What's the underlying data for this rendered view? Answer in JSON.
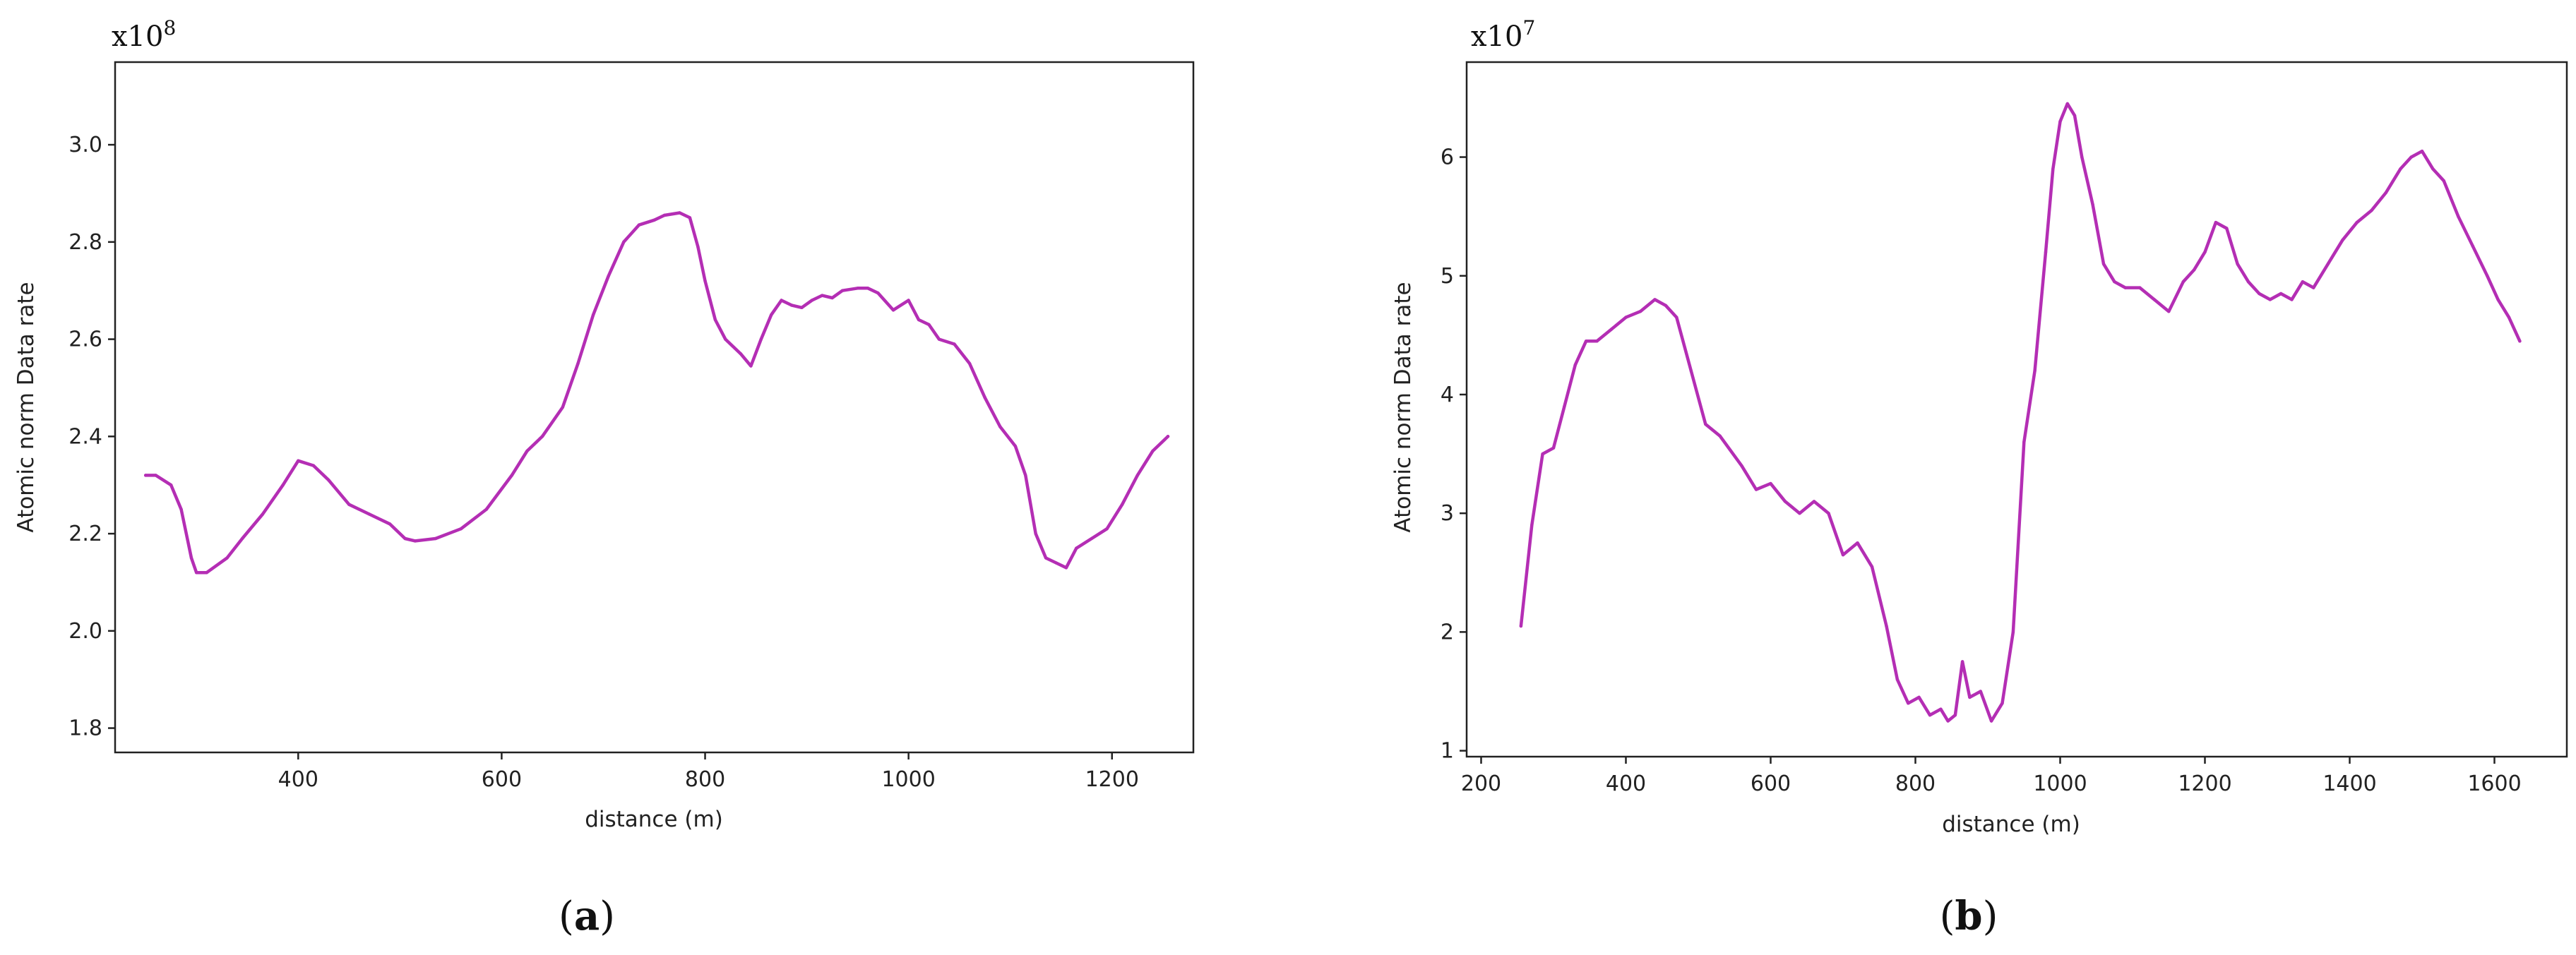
{
  "chart_data": [
    {
      "type": "line",
      "caption_open": "(",
      "caption_letter": "a",
      "caption_close": ")",
      "multiplier_base": "x10",
      "multiplier_exp": "8",
      "xlabel": "distance (m)",
      "ylabel": "Atomic norm Data rate",
      "xlim": [
        220,
        1280
      ],
      "ylim": [
        1.75,
        3.17
      ],
      "x_ticks": [
        400,
        600,
        800,
        1000,
        1200
      ],
      "y_ticks": [
        1.8,
        2.0,
        2.2,
        2.4,
        2.6,
        2.8,
        3.0
      ],
      "x_tick_labels": [
        "400",
        "600",
        "800",
        "1000",
        "1200"
      ],
      "y_tick_labels": [
        "1.8",
        "2.0",
        "2.2",
        "2.4",
        "2.6",
        "2.8",
        "3.0"
      ],
      "line_color": "#b42eb4",
      "grid": false,
      "series": [
        {
          "x": [
            250,
            260,
            275,
            285,
            295,
            300,
            310,
            330,
            345,
            365,
            385,
            400,
            415,
            430,
            450,
            470,
            490,
            505,
            515,
            535,
            560,
            585,
            610,
            625,
            640,
            660,
            675,
            690,
            705,
            720,
            735,
            750,
            760,
            775,
            785,
            793,
            800,
            810,
            820,
            835,
            845,
            855,
            865,
            875,
            885,
            895,
            905,
            915,
            925,
            935,
            950,
            960,
            970,
            985,
            1000,
            1010,
            1020,
            1030,
            1045,
            1060,
            1075,
            1090,
            1105,
            1115,
            1125,
            1135,
            1145,
            1155,
            1165,
            1180,
            1195,
            1210,
            1225,
            1240,
            1255
          ],
          "y": [
            2.32,
            2.32,
            2.3,
            2.25,
            2.15,
            2.12,
            2.12,
            2.15,
            2.19,
            2.24,
            2.3,
            2.35,
            2.34,
            2.31,
            2.26,
            2.24,
            2.22,
            2.19,
            2.185,
            2.19,
            2.21,
            2.25,
            2.32,
            2.37,
            2.4,
            2.46,
            2.55,
            2.65,
            2.73,
            2.8,
            2.835,
            2.845,
            2.855,
            2.86,
            2.85,
            2.79,
            2.72,
            2.64,
            2.6,
            2.57,
            2.545,
            2.6,
            2.65,
            2.68,
            2.67,
            2.665,
            2.68,
            2.69,
            2.685,
            2.7,
            2.705,
            2.705,
            2.695,
            2.66,
            2.68,
            2.64,
            2.63,
            2.6,
            2.59,
            2.55,
            2.48,
            2.42,
            2.38,
            2.32,
            2.2,
            2.15,
            2.14,
            2.13,
            2.17,
            2.19,
            2.21,
            2.26,
            2.32,
            2.37,
            2.4
          ]
        }
      ]
    },
    {
      "type": "line",
      "caption_open": "(",
      "caption_letter": "b",
      "caption_close": ")",
      "multiplier_base": "x10",
      "multiplier_exp": "7",
      "xlabel": "distance (m)",
      "ylabel": "Atomic norm Data rate",
      "xlim": [
        180,
        1700
      ],
      "ylim": [
        0.95,
        6.8
      ],
      "x_ticks": [
        200,
        400,
        600,
        800,
        1000,
        1200,
        1400,
        1600
      ],
      "y_ticks": [
        1,
        2,
        3,
        4,
        5,
        6
      ],
      "x_tick_labels": [
        "200",
        "400",
        "600",
        "800",
        "1000",
        "1200",
        "1400",
        "1600"
      ],
      "y_tick_labels": [
        "1",
        "2",
        "3",
        "4",
        "5",
        "6"
      ],
      "line_color": "#b42eb4",
      "grid": false,
      "series": [
        {
          "x": [
            255,
            270,
            285,
            300,
            315,
            330,
            345,
            360,
            380,
            400,
            420,
            440,
            455,
            470,
            490,
            510,
            530,
            560,
            580,
            600,
            620,
            640,
            660,
            680,
            700,
            720,
            740,
            760,
            775,
            790,
            805,
            820,
            835,
            845,
            855,
            865,
            875,
            890,
            905,
            920,
            935,
            950,
            965,
            980,
            990,
            1000,
            1010,
            1020,
            1030,
            1045,
            1060,
            1075,
            1090,
            1110,
            1130,
            1150,
            1170,
            1185,
            1200,
            1215,
            1230,
            1245,
            1260,
            1275,
            1290,
            1305,
            1320,
            1335,
            1350,
            1370,
            1390,
            1410,
            1430,
            1450,
            1470,
            1485,
            1500,
            1515,
            1530,
            1550,
            1570,
            1590,
            1605,
            1620,
            1635
          ],
          "y": [
            2.05,
            2.9,
            3.5,
            3.55,
            3.9,
            4.25,
            4.45,
            4.45,
            4.55,
            4.65,
            4.7,
            4.8,
            4.75,
            4.65,
            4.2,
            3.75,
            3.65,
            3.4,
            3.2,
            3.25,
            3.1,
            3.0,
            3.1,
            3.0,
            2.65,
            2.75,
            2.55,
            2.05,
            1.6,
            1.4,
            1.45,
            1.3,
            1.35,
            1.25,
            1.3,
            1.75,
            1.45,
            1.5,
            1.25,
            1.4,
            2.0,
            3.6,
            4.2,
            5.2,
            5.9,
            6.3,
            6.45,
            6.35,
            6.0,
            5.6,
            5.1,
            4.95,
            4.9,
            4.9,
            4.8,
            4.7,
            4.95,
            5.05,
            5.2,
            5.45,
            5.4,
            5.1,
            4.95,
            4.85,
            4.8,
            4.85,
            4.8,
            4.95,
            4.9,
            5.1,
            5.3,
            5.45,
            5.55,
            5.7,
            5.9,
            6.0,
            6.05,
            5.9,
            5.8,
            5.5,
            5.25,
            5.0,
            4.8,
            4.65,
            4.45
          ]
        }
      ]
    }
  ]
}
